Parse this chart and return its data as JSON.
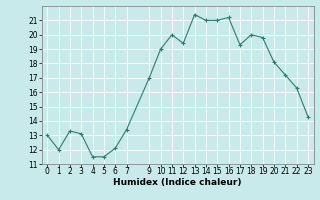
{
  "x": [
    0,
    1,
    2,
    3,
    4,
    5,
    6,
    7,
    9,
    10,
    11,
    12,
    13,
    14,
    15,
    16,
    17,
    18,
    19,
    20,
    21,
    22,
    23
  ],
  "y": [
    13,
    12,
    13.3,
    13.1,
    11.5,
    11.5,
    12.1,
    13.4,
    17,
    19,
    20,
    19.4,
    21.4,
    21,
    21,
    21.2,
    19.3,
    20,
    19.8,
    18.1,
    17.2,
    16.3,
    14.3
  ],
  "line_color": "#2d7d6e",
  "marker": "+",
  "marker_size": 3,
  "bg_color": "#c8eaea",
  "grid_color": "#ffffff",
  "xlabel": "Humidex (Indice chaleur)",
  "ylim": [
    11,
    22
  ],
  "xlim": [
    -0.5,
    23.5
  ],
  "yticks": [
    11,
    12,
    13,
    14,
    15,
    16,
    17,
    18,
    19,
    20,
    21
  ],
  "xtick_positions": [
    0,
    1,
    2,
    3,
    4,
    5,
    6,
    7,
    9,
    10,
    11,
    12,
    13,
    14,
    15,
    16,
    17,
    18,
    19,
    20,
    21,
    22,
    23
  ],
  "xtick_labels": [
    "0",
    "1",
    "2",
    "3",
    "4",
    "5",
    "6",
    "7",
    "9",
    "10",
    "11",
    "12",
    "13",
    "14",
    "15",
    "16",
    "17",
    "18",
    "19",
    "20",
    "21",
    "22",
    "23"
  ],
  "label_fontsize": 6.5,
  "tick_fontsize": 5.5
}
